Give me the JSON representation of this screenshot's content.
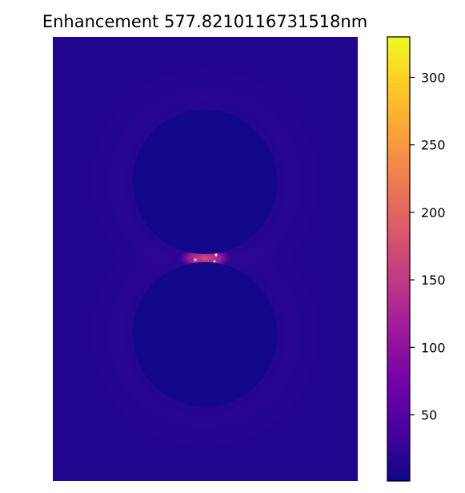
{
  "chart_data": {
    "type": "heatmap",
    "title": "Enhancement 577.8210116731518nm",
    "xlabel": "",
    "ylabel": "",
    "axes_visible": false,
    "colormap": "plasma",
    "colorbar": {
      "position": "right",
      "range": [
        1,
        330
      ],
      "ticks": [
        50,
        100,
        150,
        200,
        250,
        300
      ],
      "tick_labels": [
        "50",
        "100",
        "150",
        "200",
        "250",
        "300"
      ]
    },
    "field": {
      "background_value": 15,
      "particle_interior_value": 5,
      "gap_hotspot_value": 175,
      "hotspot_peak_value": 330
    },
    "particles": [
      {
        "name": "upper-particle",
        "shape": "circle"
      },
      {
        "name": "lower-particle",
        "shape": "circle"
      }
    ]
  }
}
